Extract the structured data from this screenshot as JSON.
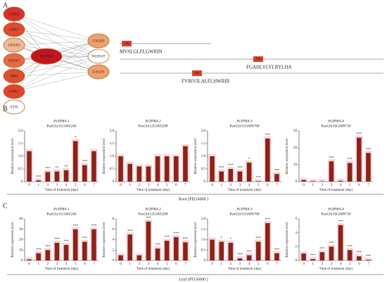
{
  "panels": {
    "a": "A"
  },
  "network": {
    "center": {
      "label": "PeTPR4",
      "color": "#c4141c"
    },
    "left": [
      {
        "label": "GNK2",
        "color": "#d8322a"
      },
      {
        "label": "CPK7",
        "color": "#e04a30"
      },
      {
        "label": "CESA3",
        "color": "#f2b896"
      },
      {
        "label": "CESA7",
        "color": "#e86a45"
      },
      {
        "label": "MRI",
        "color": "#de4c32"
      },
      {
        "label": "UNK1",
        "color": "#e2452e"
      },
      {
        "label": "SYD",
        "color": "#ffffff"
      }
    ],
    "right": [
      {
        "label": "CSLD3",
        "color": "#f0a06e"
      },
      {
        "label": "NUP107",
        "color": "#ffffff"
      },
      {
        "label": "CSLD3",
        "color": "#f0a06e"
      }
    ]
  },
  "domains": [
    {
      "label": "TPR",
      "sequence": "MVSLGLFLGWRIN"
    },
    {
      "label": "TPR",
      "sequence": "FGAHLVLVLRYLHA"
    },
    {
      "label": "TPR",
      "sequence": "FVRIVILALFLHWRIR"
    }
  ],
  "rows": [
    {
      "label": "B",
      "footer": "Root (PEG6000 )"
    },
    {
      "label": "C",
      "footer": "Leaf (PEG6000 )"
    }
  ],
  "chart_data": [
    {
      "type": "bar",
      "title": "PsTPR4-1",
      "subtitle": "PsoChr11G005240",
      "xlabel": "Time of treatment (day)",
      "ylabel": "Relative expression level",
      "color": "#8b2318",
      "categories": [
        "0",
        "1",
        "2",
        "3",
        "4",
        "5",
        "6",
        "7"
      ],
      "values": [
        1.2,
        0.05,
        0.38,
        0.4,
        0.45,
        1.6,
        0.65,
        1.2
      ],
      "significance": [
        null,
        "***",
        "***",
        "**",
        "**",
        "*",
        "***",
        null
      ],
      "ylim": [
        0,
        2.0
      ],
      "yticks": [
        0,
        0.5,
        {
          "value": 1,
          "label": "1.0"
        },
        1.5,
        {
          "value": 2,
          "label": "2.0"
        }
      ]
    },
    {
      "type": "bar",
      "title": "PsTPR4-2",
      "subtitle": "PsoChr12G005290",
      "xlabel": "Time of treatment (day)",
      "ylabel": "Relative expression level",
      "color": "#8b2318",
      "categories": [
        "0",
        "1",
        "2",
        "3",
        "4",
        "5",
        "6",
        "7"
      ],
      "values": [
        1.0,
        0.7,
        0.6,
        0.6,
        1.0,
        1.0,
        1.0,
        1.4
      ],
      "significance": [
        null,
        null,
        null,
        null,
        null,
        null,
        null,
        null
      ],
      "ylim": [
        0,
        2.0
      ],
      "yticks": [
        0,
        0.5,
        {
          "value": 1,
          "label": "1.0"
        },
        1.5,
        {
          "value": 2,
          "label": "2.0"
        }
      ]
    },
    {
      "type": "bar",
      "title": "PsTPR4-3",
      "subtitle": "PsoChr15G009790",
      "xlabel": "Time of treatment (day)",
      "ylabel": "Relative expression level",
      "color": "#8b2318",
      "categories": [
        "0",
        "1",
        "2",
        "3",
        "4",
        "5",
        "6",
        "7"
      ],
      "values": [
        1.0,
        0.4,
        0.5,
        0.4,
        0.75,
        0.02,
        1.7,
        0.3
      ],
      "significance": [
        null,
        "***",
        "***",
        "***",
        "*",
        "***",
        "***",
        "***"
      ],
      "ylim": [
        0,
        2.0
      ],
      "yticks": [
        0,
        0.5,
        {
          "value": 1,
          "label": "1.0"
        },
        1.5,
        {
          "value": 2,
          "label": "2.0"
        }
      ]
    },
    {
      "type": "bar",
      "title": "PsTPR4-4",
      "subtitle": "PsoChr16G009730",
      "xlabel": "Time of treatment (day)",
      "ylabel": "Relative expression level",
      "color": "#8b2318",
      "categories": [
        "0",
        "1",
        "2",
        "3",
        "4",
        "5",
        "6",
        "7"
      ],
      "values": [
        1,
        0.3,
        0.2,
        12,
        0.5,
        11,
        26,
        17
      ],
      "significance": [
        null,
        null,
        null,
        "***",
        null,
        "***",
        "***",
        "***"
      ],
      "ylim": [
        0,
        30
      ],
      "yticks": [
        0,
        10,
        20,
        30
      ]
    },
    {
      "type": "bar",
      "title": "PsTPR4-1",
      "subtitle": "PsoChr11G005240",
      "xlabel": "Time of treatment (day)",
      "ylabel": "Relative expression level",
      "color": "#8b2318",
      "categories": [
        "0",
        "1",
        "2",
        "3",
        "4",
        "5",
        "6",
        "7"
      ],
      "values": [
        1,
        7,
        10,
        17,
        15,
        30,
        18,
        30
      ],
      "significance": [
        null,
        "***",
        "***",
        "***",
        "***",
        "***",
        "***",
        "***"
      ],
      "ylim": [
        0,
        40
      ],
      "yticks": [
        0,
        10,
        20,
        30,
        40
      ]
    },
    {
      "type": "bar",
      "title": "PsTPR4-2",
      "subtitle": "PsoChr12G005290",
      "xlabel": "Time of treatment (day)",
      "ylabel": "Relative expression level",
      "color": "#8b2318",
      "categories": [
        "0",
        "1",
        "2",
        "3",
        "4",
        "5",
        "6",
        "7"
      ],
      "values": [
        1,
        5,
        1,
        7.5,
        2.3,
        3.8,
        4.5,
        3.5
      ],
      "significance": [
        null,
        "***",
        null,
        "***",
        "***",
        "***",
        "***",
        "***"
      ],
      "ylim": [
        0,
        8
      ],
      "yticks": [
        0,
        2,
        4,
        6,
        8
      ]
    },
    {
      "type": "bar",
      "title": "PsTPR4-3",
      "subtitle": "PsoChr15G009790",
      "xlabel": "Time of treatment (day)",
      "ylabel": "Relative expression level",
      "color": "#8b2318",
      "categories": [
        "0",
        "1",
        "2",
        "3",
        "4",
        "5",
        "6",
        "7"
      ],
      "values": [
        1,
        0.9,
        0.85,
        0.1,
        0.25,
        0.9,
        1.8,
        0.35
      ],
      "significance": [
        null,
        "*",
        "*",
        "***",
        "***",
        "***",
        "***",
        "***"
      ],
      "ylim": [
        0,
        2.0
      ],
      "yticks": [
        0,
        0.5,
        {
          "value": 1,
          "label": "1.0"
        },
        1.5,
        {
          "value": 2,
          "label": "2.0"
        }
      ]
    },
    {
      "type": "bar",
      "title": "PsTPR4-4",
      "subtitle": "PsoChr16G009730",
      "xlabel": "Time of treatment (day)",
      "ylabel": "Relative expression level",
      "color": "#8b2318",
      "categories": [
        "0",
        "1",
        "2",
        "3",
        "4",
        "5",
        "6",
        "7"
      ],
      "values": [
        1,
        0.2,
        1.2,
        2,
        5.1,
        1.5,
        0.6,
        0.1
      ],
      "significance": [
        null,
        "***",
        "***",
        "***",
        "***",
        "***",
        "***",
        "***"
      ],
      "ylim": [
        0,
        6
      ],
      "yticks": [
        0,
        2,
        4,
        6
      ]
    }
  ]
}
